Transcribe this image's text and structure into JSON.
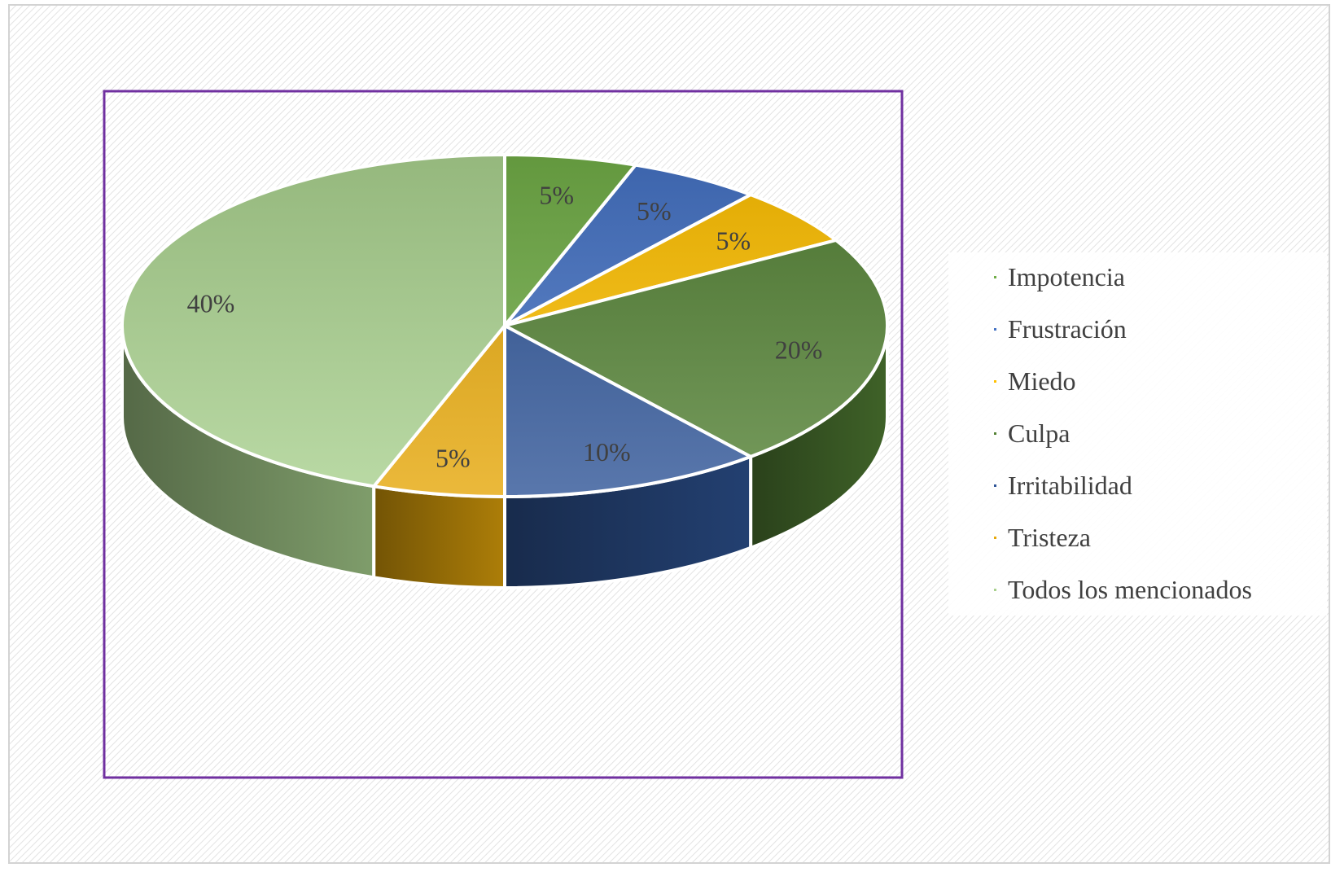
{
  "chart_data": {
    "type": "pie",
    "style": "3d",
    "slices": [
      {
        "category": "Impotencia",
        "value": 5,
        "label": "5%",
        "color": "#70AD47"
      },
      {
        "category": "Frustración",
        "value": 5,
        "label": "5%",
        "color": "#4472C4"
      },
      {
        "category": "Miedo",
        "value": 5,
        "label": "5%",
        "color": "#FFC000"
      },
      {
        "category": "Culpa",
        "value": 20,
        "label": "20%",
        "color": "#548235"
      },
      {
        "category": "Irritabilidad",
        "value": 10,
        "label": "10%",
        "color": "#2F5597"
      },
      {
        "category": "Tristeza",
        "value": 5,
        "label": "5%",
        "color": "#E6A80A"
      },
      {
        "category": "Todos los mencionados",
        "value": 40,
        "label": "40%",
        "color": "#A9D18E"
      }
    ],
    "legend": {
      "position": "right",
      "entries": [
        "Impotencia",
        "Frustración",
        "Miedo",
        "Culpa",
        "Irritabilidad",
        "Tristeza",
        "Todos los mencionados"
      ]
    },
    "frame_color": "#7030A0"
  }
}
